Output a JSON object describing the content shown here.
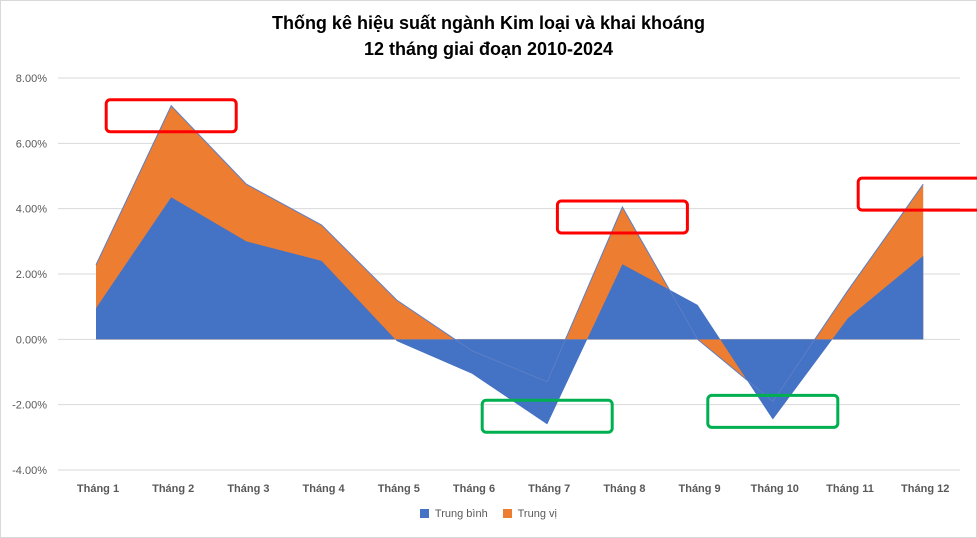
{
  "chart_data": {
    "type": "area",
    "title_line1": "Thống kê hiệu suất ngành Kim loại và khai khoáng",
    "title_line2": "12 tháng giai đoạn 2010-2024",
    "categories": [
      "Tháng 1",
      "Tháng 2",
      "Tháng 3",
      "Tháng 4",
      "Tháng 5",
      "Tháng 6",
      "Tháng 7",
      "Tháng 8",
      "Tháng 9",
      "Tháng 10",
      "Tháng 11",
      "Tháng 12"
    ],
    "series": [
      {
        "name": "Trung bình",
        "color": "#4472c4",
        "values": [
          0.95,
          4.35,
          3.0,
          2.4,
          -0.05,
          -1.05,
          -2.6,
          2.3,
          1.05,
          -2.45,
          0.65,
          2.55
        ]
      },
      {
        "name": "Trung vị",
        "color": "#ed7d31",
        "values": [
          2.28,
          7.15,
          4.75,
          3.5,
          1.2,
          -0.35,
          -1.3,
          4.05,
          0.0,
          -1.9,
          1.5,
          4.75
        ]
      }
    ],
    "y_ticks": [
      "-4.00%",
      "-2.00%",
      "0.00%",
      "2.00%",
      "4.00%",
      "6.00%",
      "8.00%"
    ],
    "ylim": [
      -4,
      8
    ],
    "y_unit": "%",
    "grid": true,
    "legend_position": "bottom",
    "annotations": [
      {
        "shape": "rectangle",
        "color": "#ff0000",
        "marks": "Tháng 2"
      },
      {
        "shape": "rectangle",
        "color": "#ff0000",
        "marks": "Tháng 8"
      },
      {
        "shape": "rectangle",
        "color": "#ff0000",
        "marks": "Tháng 12"
      },
      {
        "shape": "rectangle",
        "color": "#00b050",
        "marks": "Tháng 7"
      },
      {
        "shape": "rectangle",
        "color": "#00b050",
        "marks": "Tháng 10"
      }
    ]
  }
}
